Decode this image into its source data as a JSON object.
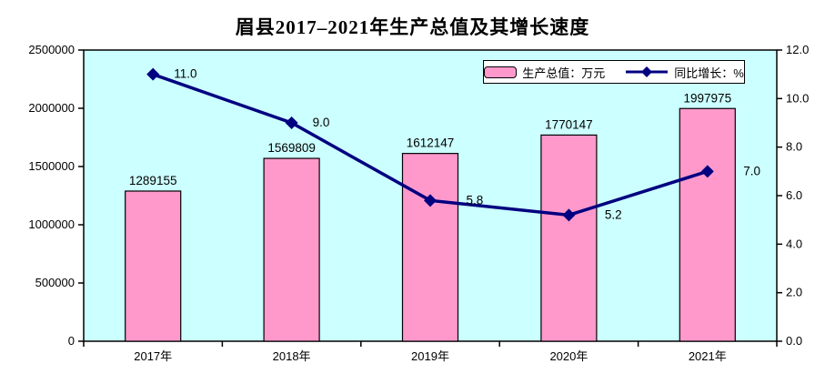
{
  "chart_data": {
    "type": "bar",
    "title": "眉县2017–2021年生产总值及其增长速度",
    "categories": [
      "2017年",
      "2018年",
      "2019年",
      "2020年",
      "2021年"
    ],
    "series": [
      {
        "name": "生产总值：万元",
        "type": "bar",
        "axis": "left",
        "color": "#FF99CC",
        "border_color": "#000000",
        "values": [
          1289155,
          1569809,
          1612147,
          1770147,
          1997975
        ],
        "labels": [
          "1289155",
          "1569809",
          "1612147",
          "1770147",
          "1997975"
        ]
      },
      {
        "name": "同比增长：%",
        "type": "line",
        "axis": "right",
        "color": "#000080",
        "marker": "diamond",
        "values": [
          11.0,
          9.0,
          5.8,
          5.2,
          7.0
        ],
        "labels": [
          "11.0",
          "9.0",
          "5.8",
          "5.2",
          "7.0"
        ]
      }
    ],
    "left_axis": {
      "min": 0,
      "max": 2500000,
      "step": 500000,
      "tick_labels": [
        "0",
        "500000",
        "1000000",
        "1500000",
        "2000000",
        "2500000"
      ]
    },
    "right_axis": {
      "min": 0,
      "max": 12,
      "step": 2,
      "tick_labels": [
        "0.0",
        "2.0",
        "4.0",
        "6.0",
        "8.0",
        "10.0",
        "12.0"
      ]
    },
    "plot_background": "#CCFFFF",
    "axis_color": "#000000",
    "grid": "off",
    "legend_position": "inside-top-right"
  }
}
